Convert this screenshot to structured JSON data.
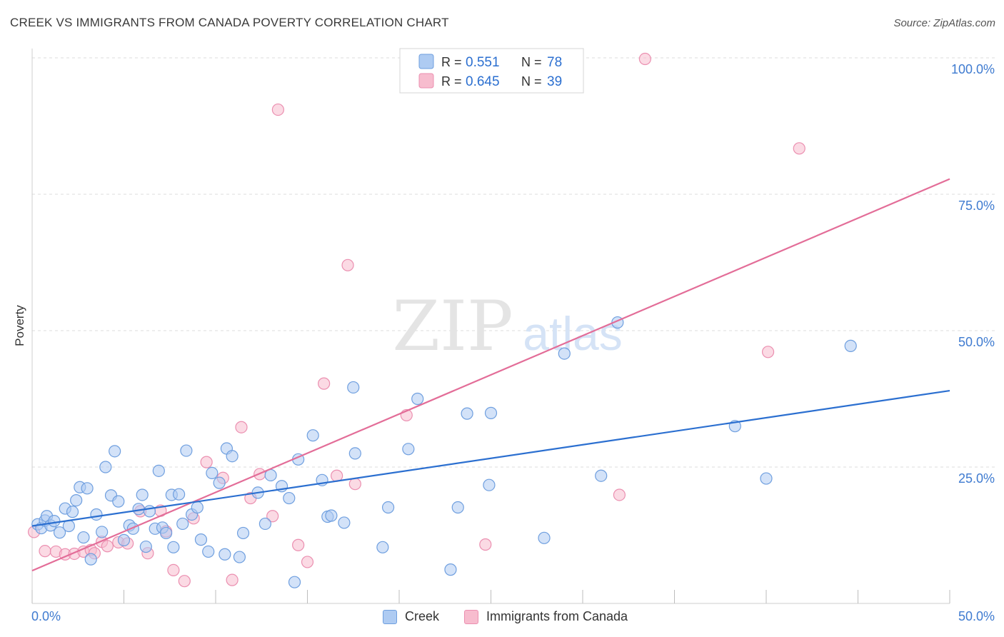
{
  "header": {
    "title": "CREEK VS IMMIGRANTS FROM CANADA POVERTY CORRELATION CHART",
    "source": "Source: ZipAtlas.com"
  },
  "watermark": {
    "zip": "ZIP",
    "atlas": "atlas"
  },
  "colors": {
    "creek_fill": "#aecbf2",
    "creek_stroke": "#6f9fdf",
    "creek_line": "#2b6fd0",
    "canada_fill": "#f7bcce",
    "canada_stroke": "#eb8fb0",
    "canada_line": "#e36d98",
    "tick_label": "#3f7bd0",
    "grid": "#dcdcdc"
  },
  "chart_data": {
    "type": "scatter",
    "title": "CREEK VS IMMIGRANTS FROM CANADA POVERTY CORRELATION CHART",
    "xlabel": "",
    "ylabel": "Poverty",
    "xlim": [
      0,
      50
    ],
    "ylim": [
      0,
      100
    ],
    "x_tick_labels": [
      "0.0%",
      "50.0%"
    ],
    "y_ticks": [
      25,
      50,
      75,
      100
    ],
    "y_tick_labels": [
      "25.0%",
      "50.0%",
      "75.0%",
      "100.0%"
    ],
    "grid": true,
    "legend_position": "top-center",
    "legend": {
      "rows": [
        {
          "r_label": "R =",
          "r_value": "0.551",
          "n_label": "N =",
          "n_value": "78"
        },
        {
          "r_label": "R =",
          "r_value": "0.645",
          "n_label": "N =",
          "n_value": "39"
        }
      ]
    },
    "series": [
      {
        "name": "Creek",
        "r": 0.551,
        "n": 78,
        "trend": {
          "x": [
            0,
            50
          ],
          "y": [
            14.2,
            39.0
          ]
        },
        "points": [
          [
            0.3,
            14.5
          ],
          [
            0.5,
            13.8
          ],
          [
            0.7,
            15.2
          ],
          [
            0.8,
            16.0
          ],
          [
            1.0,
            14.3
          ],
          [
            1.2,
            15.1
          ],
          [
            1.5,
            13.0
          ],
          [
            1.8,
            17.4
          ],
          [
            2.0,
            14.2
          ],
          [
            2.2,
            16.8
          ],
          [
            2.4,
            18.9
          ],
          [
            2.6,
            21.3
          ],
          [
            2.8,
            12.1
          ],
          [
            3.0,
            21.1
          ],
          [
            3.2,
            8.1
          ],
          [
            3.5,
            16.3
          ],
          [
            3.8,
            13.1
          ],
          [
            4.0,
            25.0
          ],
          [
            4.3,
            19.8
          ],
          [
            4.5,
            27.9
          ],
          [
            4.7,
            18.7
          ],
          [
            5.0,
            11.6
          ],
          [
            5.3,
            14.3
          ],
          [
            5.5,
            13.7
          ],
          [
            5.8,
            17.3
          ],
          [
            6.0,
            19.9
          ],
          [
            6.2,
            10.4
          ],
          [
            6.4,
            16.9
          ],
          [
            6.7,
            13.7
          ],
          [
            6.9,
            24.3
          ],
          [
            7.1,
            13.9
          ],
          [
            7.3,
            12.9
          ],
          [
            7.6,
            19.9
          ],
          [
            7.7,
            10.3
          ],
          [
            8.0,
            20.0
          ],
          [
            8.2,
            14.6
          ],
          [
            8.4,
            28.0
          ],
          [
            8.7,
            16.3
          ],
          [
            9.0,
            17.6
          ],
          [
            9.2,
            11.7
          ],
          [
            9.6,
            9.5
          ],
          [
            9.8,
            23.9
          ],
          [
            10.2,
            22.1
          ],
          [
            10.6,
            28.4
          ],
          [
            10.9,
            27.0
          ],
          [
            10.5,
            9.0
          ],
          [
            11.3,
            8.5
          ],
          [
            11.5,
            12.9
          ],
          [
            12.3,
            20.3
          ],
          [
            12.7,
            14.6
          ],
          [
            13.0,
            23.5
          ],
          [
            13.6,
            21.5
          ],
          [
            14.0,
            19.3
          ],
          [
            14.3,
            3.9
          ],
          [
            14.5,
            26.4
          ],
          [
            15.3,
            30.8
          ],
          [
            15.8,
            22.6
          ],
          [
            16.1,
            15.9
          ],
          [
            16.3,
            16.1
          ],
          [
            17.0,
            14.8
          ],
          [
            17.5,
            39.6
          ],
          [
            17.6,
            27.5
          ],
          [
            19.1,
            10.3
          ],
          [
            19.4,
            17.6
          ],
          [
            20.5,
            28.3
          ],
          [
            21.0,
            37.5
          ],
          [
            22.8,
            6.2
          ],
          [
            23.2,
            17.6
          ],
          [
            23.7,
            34.8
          ],
          [
            24.9,
            21.7
          ],
          [
            25.0,
            34.9
          ],
          [
            27.9,
            12.0
          ],
          [
            29.0,
            45.8
          ],
          [
            31.0,
            23.4
          ],
          [
            31.9,
            51.5
          ],
          [
            38.3,
            32.5
          ],
          [
            40.0,
            22.9
          ],
          [
            44.6,
            47.2
          ]
        ]
      },
      {
        "name": "Immigrants from Canada",
        "r": 0.645,
        "n": 39,
        "trend": {
          "x": [
            0,
            50
          ],
          "y": [
            6.0,
            77.8
          ]
        },
        "points": [
          [
            0.1,
            13.1
          ],
          [
            0.7,
            9.6
          ],
          [
            1.3,
            9.5
          ],
          [
            1.8,
            9.0
          ],
          [
            2.3,
            9.1
          ],
          [
            2.8,
            9.5
          ],
          [
            3.2,
            9.8
          ],
          [
            3.4,
            9.2
          ],
          [
            3.8,
            11.3
          ],
          [
            4.1,
            10.5
          ],
          [
            4.7,
            11.2
          ],
          [
            5.2,
            11.0
          ],
          [
            5.9,
            16.9
          ],
          [
            6.3,
            9.2
          ],
          [
            7.0,
            17.0
          ],
          [
            7.3,
            13.2
          ],
          [
            7.7,
            6.1
          ],
          [
            8.3,
            4.1
          ],
          [
            8.8,
            15.6
          ],
          [
            9.5,
            25.9
          ],
          [
            10.4,
            23.0
          ],
          [
            10.9,
            4.3
          ],
          [
            11.4,
            32.3
          ],
          [
            11.9,
            19.3
          ],
          [
            12.4,
            23.7
          ],
          [
            13.1,
            16.0
          ],
          [
            13.4,
            90.5
          ],
          [
            14.5,
            10.7
          ],
          [
            15.0,
            7.6
          ],
          [
            15.9,
            40.3
          ],
          [
            16.6,
            23.4
          ],
          [
            17.2,
            62.0
          ],
          [
            17.6,
            21.9
          ],
          [
            20.4,
            34.5
          ],
          [
            24.7,
            10.8
          ],
          [
            32.0,
            19.9
          ],
          [
            33.4,
            99.8
          ],
          [
            40.1,
            46.1
          ],
          [
            41.8,
            83.4
          ]
        ]
      }
    ]
  },
  "legend_bottom": {
    "items": [
      "Creek",
      "Immigrants from Canada"
    ]
  }
}
